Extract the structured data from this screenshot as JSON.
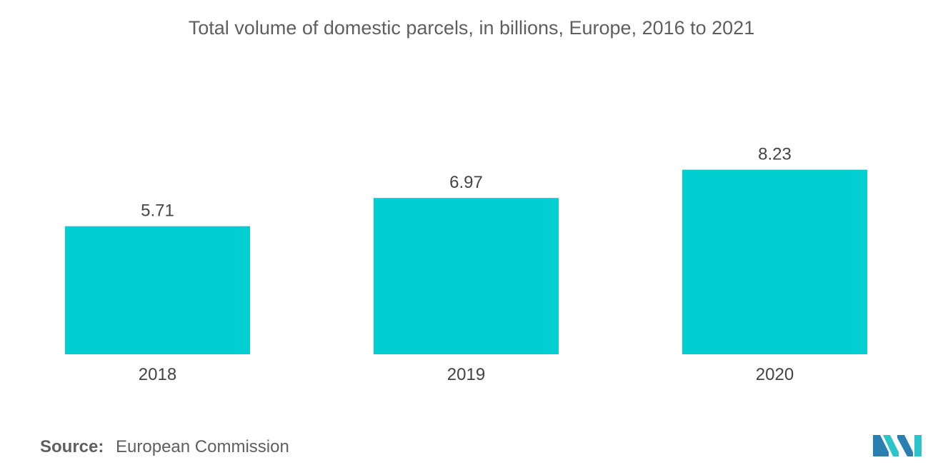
{
  "colors": {
    "bar": "#00ced1",
    "text": "#444444",
    "title": "#5f5f5f",
    "logo_dark": "#2a7fb0",
    "logo_light": "#2bc4c9"
  },
  "source": {
    "key": "Source:",
    "value": "European Commission"
  },
  "logo": {
    "icon": "mordor-intelligence-logo-icon"
  },
  "chart_data": {
    "type": "bar",
    "title": "Total volume of domestic parcels, in billions, Europe, 2016 to 2021",
    "xlabel": "",
    "ylabel": "",
    "categories": [
      "2018",
      "2019",
      "2020"
    ],
    "values": [
      5.71,
      6.97,
      8.23
    ],
    "data_labels": [
      "5.71",
      "6.97",
      "8.23"
    ],
    "ylim": [
      0,
      10
    ],
    "grid": false,
    "legend": "none"
  }
}
